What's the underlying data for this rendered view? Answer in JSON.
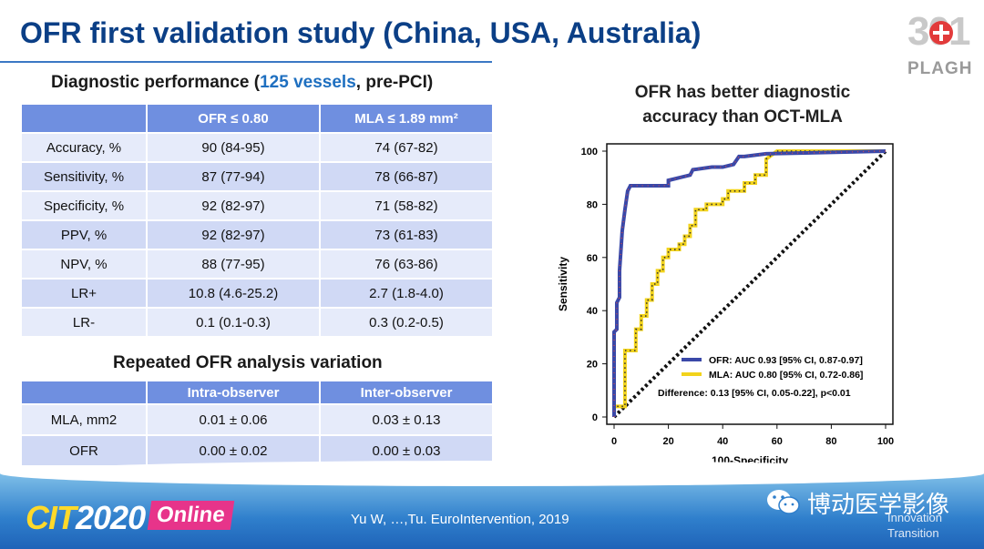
{
  "title": "OFR first validation study (China, USA, Australia)",
  "logo": {
    "number": "301",
    "text": "PLAGH"
  },
  "diag": {
    "heading_pre": "Diagnostic performance (",
    "heading_hl": "125 vessels",
    "heading_post": ", pre-PCI)",
    "headers": [
      "",
      "OFR ≤ 0.80",
      "MLA ≤ 1.89 mm²"
    ],
    "rows": [
      [
        "Accuracy, %",
        "90 (84-95)",
        "74 (67-82)"
      ],
      [
        "Sensitivity, %",
        "87 (77-94)",
        "78 (66-87)"
      ],
      [
        "Specificity, %",
        "92 (82-97)",
        "71 (58-82)"
      ],
      [
        "PPV, %",
        "92 (82-97)",
        "73 (61-83)"
      ],
      [
        "NPV, %",
        "88 (77-95)",
        "76 (63-86)"
      ],
      [
        "LR+",
        "10.8 (4.6-25.2)",
        "2.7 (1.8-4.0)"
      ],
      [
        "LR-",
        "0.1 (0.1-0.3)",
        "0.3 (0.2-0.5)"
      ]
    ]
  },
  "repeat": {
    "heading": "Repeated OFR analysis variation",
    "headers": [
      "",
      "Intra-observer",
      "Inter-observer"
    ],
    "rows": [
      [
        "MLA, mm2",
        "0.01 ± 0.06",
        "0.03 ± 0.13"
      ],
      [
        "OFR",
        "0.00 ± 0.02",
        "0.00 ± 0.03"
      ]
    ]
  },
  "chart_title_line1": "OFR has better diagnostic",
  "chart_title_line2": "accuracy than OCT-MLA",
  "chart_data": {
    "type": "line",
    "xlabel": "100-Specificity",
    "ylabel": "Sensitivity",
    "xlim": [
      0,
      100
    ],
    "ylim": [
      0,
      100
    ],
    "xticks": [
      0,
      20,
      40,
      60,
      80,
      100
    ],
    "yticks": [
      0,
      20,
      40,
      60,
      80,
      100
    ],
    "series": [
      {
        "name": "OFR: AUC 0.93 [95% CI, 0.87-0.97]",
        "color": "#3a48a8",
        "x": [
          0,
          0,
          1,
          1,
          2,
          2,
          3,
          4,
          5,
          6,
          7,
          8,
          10,
          20,
          20,
          24,
          28,
          29,
          36,
          40,
          44,
          46,
          48,
          56,
          100
        ],
        "y": [
          0,
          32,
          33,
          43,
          45,
          55,
          70,
          78,
          85,
          87,
          87,
          87,
          87,
          87,
          89,
          90,
          91,
          93,
          94,
          94,
          95,
          98,
          98,
          99,
          100
        ]
      },
      {
        "name": "MLA: AUC 0.80 [95% CI, 0.72-0.86]",
        "color": "#f2d31b",
        "x": [
          0,
          0,
          4,
          4,
          8,
          8,
          10,
          10,
          12,
          12,
          14,
          14,
          16,
          16,
          18,
          18,
          20,
          20,
          24,
          24,
          26,
          26,
          28,
          28,
          30,
          30,
          34,
          34,
          40,
          40,
          42,
          42,
          48,
          48,
          52,
          52,
          56,
          56,
          60,
          100
        ],
        "y": [
          0,
          4,
          4,
          25,
          25,
          33,
          33,
          38,
          38,
          44,
          44,
          50,
          50,
          55,
          55,
          60,
          60,
          63,
          63,
          65,
          65,
          68,
          68,
          72,
          72,
          78,
          78,
          80,
          80,
          82,
          82,
          85,
          85,
          88,
          88,
          91,
          91,
          97,
          100,
          100
        ]
      },
      {
        "name": "reference",
        "color": "#111111",
        "x": [
          0,
          100
        ],
        "y": [
          0,
          100
        ]
      }
    ],
    "legend": [
      "OFR: AUC 0.93 [95% CI, 0.87-0.97]",
      "MLA: AUC 0.80 [95% CI, 0.72-0.86]"
    ],
    "annotation": "Difference: 0.13 [95% CI, 0.05-0.22], p<0.01"
  },
  "footer": {
    "cit_text": "CIT",
    "cit_year": "2020",
    "online": "Online",
    "citation": "Yu W, …,Tu. EuroIntervention, 2019",
    "wechat": "博动医学影像",
    "innovation_line1": "Innovation",
    "innovation_line2": "Transition"
  }
}
